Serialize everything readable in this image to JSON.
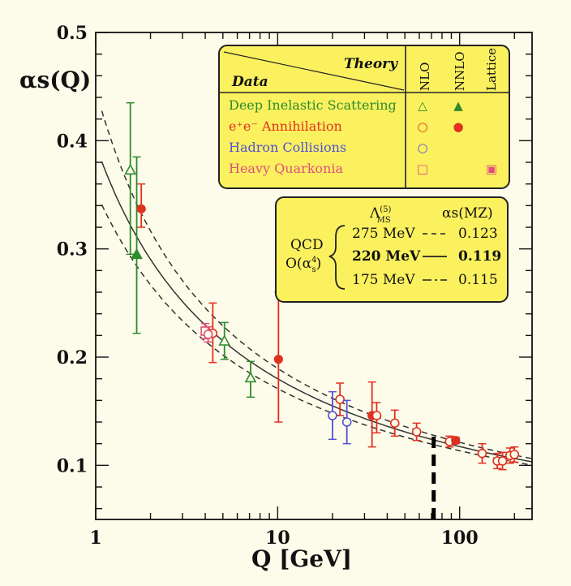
{
  "chart_data": {
    "type": "scatter",
    "x_scale": "log",
    "xlim": [
      1,
      250
    ],
    "ylim": [
      0.05,
      0.5
    ],
    "x_ticks": [
      "1",
      "10",
      "100"
    ],
    "y_ticks": [
      "0.1",
      "0.2",
      "0.3",
      "0.4",
      "0.5"
    ],
    "xlabel": "Q [GeV]",
    "ylabel": "αs(Q)",
    "grid": false,
    "colors": {
      "dis": "#2e8b2e",
      "ee": "#e03020",
      "hadron": "#5050d8",
      "quarkonia": "#e0507a",
      "curve": "#333333",
      "box_fill": "#fbf15e"
    },
    "curves": [
      {
        "alpha_mz": 0.123,
        "style": "dashed"
      },
      {
        "alpha_mz": 0.119,
        "style": "solid"
      },
      {
        "alpha_mz": 0.115,
        "style": "dashed"
      }
    ],
    "mz_marker": 91.2,
    "series": [
      {
        "group": "dis",
        "points": [
          {
            "x": 1.55,
            "y": 0.373,
            "lo": 0.295,
            "hi": 0.435,
            "marker": "tri-open"
          },
          {
            "x": 1.68,
            "y": 0.295,
            "lo": 0.222,
            "hi": 0.385,
            "marker": "tri-filled"
          },
          {
            "x": 5.1,
            "y": 0.215,
            "lo": 0.198,
            "hi": 0.232,
            "marker": "tri-open"
          },
          {
            "x": 7.1,
            "y": 0.181,
            "lo": 0.163,
            "hi": 0.196,
            "marker": "tri-open"
          }
        ]
      },
      {
        "group": "ee",
        "points": [
          {
            "x": 1.78,
            "y": 0.337,
            "lo": 0.32,
            "hi": 0.36,
            "marker": "circle-filled"
          },
          {
            "x": 4.4,
            "y": 0.222,
            "lo": 0.195,
            "hi": 0.25,
            "marker": "circle-open"
          },
          {
            "x": 10.1,
            "y": 0.198,
            "lo": 0.14,
            "hi": 0.26,
            "marker": "circle-filled"
          },
          {
            "x": 22,
            "y": 0.161,
            "lo": 0.146,
            "hi": 0.176,
            "marker": "circle-open"
          },
          {
            "x": 33,
            "y": 0.146,
            "lo": 0.117,
            "hi": 0.177,
            "marker": "circle-filled"
          },
          {
            "x": 35,
            "y": 0.146,
            "lo": 0.13,
            "hi": 0.158,
            "marker": "circle-open"
          },
          {
            "x": 44,
            "y": 0.139,
            "lo": 0.127,
            "hi": 0.151,
            "marker": "circle-open"
          },
          {
            "x": 58,
            "y": 0.131,
            "lo": 0.123,
            "hi": 0.139,
            "marker": "circle-open"
          },
          {
            "x": 88,
            "y": 0.122,
            "lo": 0.117,
            "hi": 0.127,
            "marker": "circle-open"
          },
          {
            "x": 95,
            "y": 0.123,
            "lo": 0.12,
            "hi": 0.126,
            "marker": "circle-filled"
          },
          {
            "x": 133,
            "y": 0.111,
            "lo": 0.102,
            "hi": 0.12,
            "marker": "circle-open"
          },
          {
            "x": 161,
            "y": 0.104,
            "lo": 0.097,
            "hi": 0.111,
            "marker": "circle-open"
          },
          {
            "x": 172,
            "y": 0.104,
            "lo": 0.096,
            "hi": 0.112,
            "marker": "circle-open"
          },
          {
            "x": 189,
            "y": 0.109,
            "lo": 0.102,
            "hi": 0.116,
            "marker": "circle-open"
          },
          {
            "x": 200,
            "y": 0.11,
            "lo": 0.103,
            "hi": 0.117,
            "marker": "circle-open"
          }
        ]
      },
      {
        "group": "hadron",
        "points": [
          {
            "x": 20,
            "y": 0.146,
            "lo": 0.124,
            "hi": 0.168,
            "marker": "circle-open"
          },
          {
            "x": 24,
            "y": 0.14,
            "lo": 0.12,
            "hi": 0.16,
            "marker": "circle-open"
          }
        ]
      },
      {
        "group": "quarkonia",
        "points": [
          {
            "x": 4.0,
            "y": 0.224,
            "lo": 0.217,
            "hi": 0.231,
            "marker": "square-open"
          },
          {
            "x": 4.15,
            "y": 0.221,
            "lo": 0.214,
            "hi": 0.228,
            "marker": "circle-open"
          }
        ]
      }
    ]
  },
  "legend": {
    "theory_label": "Theory",
    "data_label": "Data",
    "columns": [
      "NLO",
      "NNLO",
      "Lattice"
    ],
    "rows": [
      {
        "label": "Deep Inelastic Scattering",
        "color": "#2e8b2e",
        "nlo": "△",
        "nnlo": "▲",
        "lattice": ""
      },
      {
        "label": "e⁺e⁻ Annihilation",
        "color": "#e03020",
        "nlo": "○",
        "nnlo": "●",
        "lattice": ""
      },
      {
        "label": "Hadron Collisions",
        "color": "#5050d8",
        "nlo": "○",
        "nnlo": "",
        "lattice": ""
      },
      {
        "label": "Heavy Quarkonia",
        "color": "#e0507a",
        "nlo": "□",
        "nnlo": "",
        "lattice": "▣"
      }
    ]
  },
  "qcd_box": {
    "lambda_header": "Λ",
    "lambda_sup": "(5)",
    "lambda_sub": "MS",
    "alpha_header": "αs(MZ)",
    "qcd_line1": "QCD",
    "qcd_line2": "O(α",
    "qcd_line2_sup": "4",
    "qcd_line2_sub": "s",
    "qcd_line2_end": ")",
    "rows": [
      {
        "lambda": "275 MeV",
        "alpha": "0.123",
        "style": "dashed",
        "bold": false
      },
      {
        "lambda": "220 MeV",
        "alpha": "0.119",
        "style": "solid",
        "bold": true
      },
      {
        "lambda": "175 MeV",
        "alpha": "0.115",
        "style": "dashed",
        "bold": false
      }
    ]
  }
}
